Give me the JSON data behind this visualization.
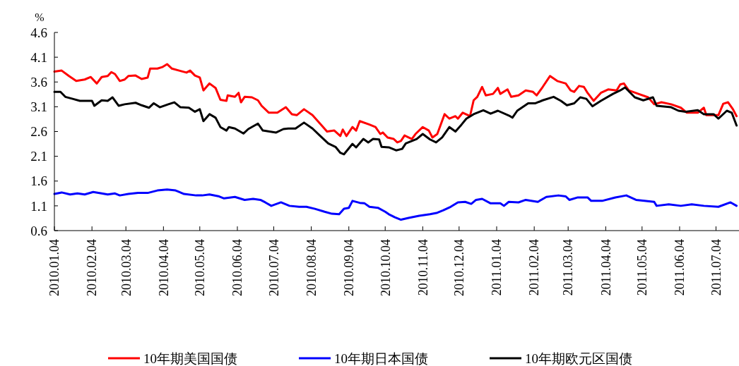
{
  "chart_data": {
    "type": "line",
    "ylabel": "%",
    "legend": "bottom",
    "line_style": "solid",
    "marker": "none",
    "xlim": [
      "2010-01-04",
      "2011-07-23"
    ],
    "ylim": [
      0.6,
      4.6
    ],
    "yticks": [
      {
        "value": 0.6,
        "label": "0.6"
      },
      {
        "value": 1.1,
        "label": "1.1"
      },
      {
        "value": 1.6,
        "label": "1.6"
      },
      {
        "value": 2.1,
        "label": "2.1"
      },
      {
        "value": 2.6,
        "label": "2.6"
      },
      {
        "value": 3.1,
        "label": "3.1"
      },
      {
        "value": 3.6,
        "label": "3.6"
      },
      {
        "value": 4.1,
        "label": "4.1"
      },
      {
        "value": 4.6,
        "label": "4.6"
      }
    ],
    "xticks": [
      {
        "value": "2010-01-04",
        "label": "2010.01.04"
      },
      {
        "value": "2010-02-04",
        "label": "2010.02.04"
      },
      {
        "value": "2010-03-04",
        "label": "2010.03.04"
      },
      {
        "value": "2010-04-04",
        "label": "2010.04.04"
      },
      {
        "value": "2010-05-04",
        "label": "2010.05.04"
      },
      {
        "value": "2010-06-04",
        "label": "2010.06.04"
      },
      {
        "value": "2010-07-04",
        "label": "2010.07.04"
      },
      {
        "value": "2010-08-04",
        "label": "2010.08.04"
      },
      {
        "value": "2010-09-04",
        "label": "2010.09.04"
      },
      {
        "value": "2010-10-04",
        "label": "2010.10.04"
      },
      {
        "value": "2010-11-04",
        "label": "2010.11.04"
      },
      {
        "value": "2010-12-04",
        "label": "2010.12.04"
      },
      {
        "value": "2011-01-04",
        "label": "2011.01.04"
      },
      {
        "value": "2011-02-04",
        "label": "2011.02.04"
      },
      {
        "value": "2011-03-04",
        "label": "2011.03.04"
      },
      {
        "value": "2011-04-04",
        "label": "2011.04.04"
      },
      {
        "value": "2011-05-04",
        "label": "2011.05.04"
      },
      {
        "value": "2011-06-04",
        "label": "2011.06.04"
      },
      {
        "value": "2011-07-04",
        "label": "2011.07.04"
      }
    ],
    "series": [
      {
        "name": "10年期美国国债",
        "color": "#ff0000",
        "x": [
          "2010-01-04",
          "2010-01-10",
          "2010-01-16",
          "2010-01-22",
          "2010-01-29",
          "2010-02-03",
          "2010-02-08",
          "2010-02-12",
          "2010-02-17",
          "2010-02-20",
          "2010-02-23",
          "2010-02-27",
          "2010-03-03",
          "2010-03-06",
          "2010-03-12",
          "2010-03-17",
          "2010-03-22",
          "2010-03-24",
          "2010-03-30",
          "2010-04-03",
          "2010-04-07",
          "2010-04-11",
          "2010-04-17",
          "2010-04-23",
          "2010-04-26",
          "2010-04-30",
          "2010-05-04",
          "2010-05-07",
          "2010-05-12",
          "2010-05-17",
          "2010-05-21",
          "2010-05-26",
          "2010-05-27",
          "2010-06-02",
          "2010-06-05",
          "2010-06-07",
          "2010-06-10",
          "2010-06-16",
          "2010-06-21",
          "2010-06-24",
          "2010-06-30",
          "2010-07-07",
          "2010-07-14",
          "2010-07-19",
          "2010-07-23",
          "2010-07-29",
          "2010-08-05",
          "2010-08-12",
          "2010-08-17",
          "2010-08-23",
          "2010-08-28",
          "2010-08-30",
          "2010-09-02",
          "2010-09-07",
          "2010-09-10",
          "2010-09-13",
          "2010-09-21",
          "2010-09-26",
          "2010-09-30",
          "2010-10-02",
          "2010-10-06",
          "2010-10-11",
          "2010-10-14",
          "2010-10-17",
          "2010-10-20",
          "2010-10-26",
          "2010-10-29",
          "2010-11-04",
          "2010-11-09",
          "2010-11-12",
          "2010-11-16",
          "2010-11-22",
          "2010-11-26",
          "2010-12-01",
          "2010-12-03",
          "2010-12-07",
          "2010-12-13",
          "2010-12-16",
          "2010-12-19",
          "2010-12-23",
          "2010-12-26",
          "2011-01-01",
          "2011-01-05",
          "2011-01-07",
          "2011-01-13",
          "2011-01-16",
          "2011-01-22",
          "2011-01-28",
          "2011-02-03",
          "2011-02-06",
          "2011-02-11",
          "2011-02-17",
          "2011-02-23",
          "2011-03-02",
          "2011-03-06",
          "2011-03-09",
          "2011-03-13",
          "2011-03-17",
          "2011-03-20",
          "2011-03-25",
          "2011-03-31",
          "2011-04-06",
          "2011-04-13",
          "2011-04-16",
          "2011-04-19",
          "2011-04-23",
          "2011-05-01",
          "2011-05-09",
          "2011-05-14",
          "2011-05-20",
          "2011-05-28",
          "2011-06-05",
          "2011-06-10",
          "2011-06-19",
          "2011-06-24",
          "2011-06-26",
          "2011-07-02",
          "2011-07-06",
          "2011-07-10",
          "2011-07-14",
          "2011-07-18",
          "2011-07-21"
        ],
        "values": [
          3.81,
          3.83,
          3.72,
          3.62,
          3.65,
          3.7,
          3.57,
          3.7,
          3.72,
          3.8,
          3.76,
          3.62,
          3.65,
          3.72,
          3.73,
          3.66,
          3.69,
          3.87,
          3.87,
          3.9,
          3.96,
          3.87,
          3.83,
          3.79,
          3.83,
          3.73,
          3.69,
          3.43,
          3.57,
          3.48,
          3.24,
          3.22,
          3.33,
          3.3,
          3.38,
          3.19,
          3.3,
          3.29,
          3.23,
          3.12,
          2.98,
          2.98,
          3.09,
          2.95,
          2.93,
          3.05,
          2.93,
          2.74,
          2.6,
          2.62,
          2.51,
          2.64,
          2.51,
          2.69,
          2.62,
          2.81,
          2.74,
          2.69,
          2.55,
          2.58,
          2.48,
          2.45,
          2.38,
          2.41,
          2.52,
          2.45,
          2.55,
          2.69,
          2.62,
          2.48,
          2.55,
          2.95,
          2.86,
          2.91,
          2.86,
          2.98,
          2.91,
          3.23,
          3.3,
          3.5,
          3.33,
          3.36,
          3.48,
          3.36,
          3.45,
          3.3,
          3.33,
          3.43,
          3.4,
          3.33,
          3.5,
          3.72,
          3.62,
          3.57,
          3.43,
          3.4,
          3.52,
          3.5,
          3.38,
          3.22,
          3.38,
          3.45,
          3.43,
          3.55,
          3.57,
          3.43,
          3.36,
          3.29,
          3.15,
          3.19,
          3.15,
          3.08,
          2.98,
          2.98,
          3.08,
          2.93,
          2.93,
          2.93,
          3.16,
          3.19,
          3.05,
          2.91
        ]
      },
      {
        "name": "10年期日本国债",
        "color": "#0000ff",
        "x": [
          "2010-01-04",
          "2010-01-10",
          "2010-01-17",
          "2010-01-23",
          "2010-01-29",
          "2010-02-05",
          "2010-02-12",
          "2010-02-17",
          "2010-02-23",
          "2010-02-27",
          "2010-03-06",
          "2010-03-14",
          "2010-03-22",
          "2010-03-30",
          "2010-04-07",
          "2010-04-14",
          "2010-04-21",
          "2010-05-01",
          "2010-05-06",
          "2010-05-12",
          "2010-05-20",
          "2010-05-24",
          "2010-06-02",
          "2010-06-10",
          "2010-06-17",
          "2010-06-23",
          "2010-06-27",
          "2010-07-02",
          "2010-07-10",
          "2010-07-17",
          "2010-07-25",
          "2010-07-31",
          "2010-08-07",
          "2010-08-15",
          "2010-08-21",
          "2010-08-27",
          "2010-08-31",
          "2010-09-04",
          "2010-09-07",
          "2010-09-13",
          "2010-09-17",
          "2010-09-21",
          "2010-09-28",
          "2010-10-04",
          "2010-10-07",
          "2010-10-12",
          "2010-10-17",
          "2010-10-24",
          "2010-11-01",
          "2010-11-10",
          "2010-11-16",
          "2010-11-21",
          "2010-11-27",
          "2010-12-03",
          "2010-12-09",
          "2010-12-14",
          "2010-12-18",
          "2010-12-23",
          "2010-12-30",
          "2011-01-07",
          "2011-01-10",
          "2011-01-14",
          "2011-01-22",
          "2011-01-28",
          "2011-02-07",
          "2011-02-14",
          "2011-02-24",
          "2011-03-02",
          "2011-03-05",
          "2011-03-12",
          "2011-03-20",
          "2011-03-23",
          "2011-04-01",
          "2011-04-12",
          "2011-04-21",
          "2011-04-29",
          "2011-05-06",
          "2011-05-14",
          "2011-05-16",
          "2011-05-26",
          "2011-06-05",
          "2011-06-14",
          "2011-06-24",
          "2011-07-06",
          "2011-07-16",
          "2011-07-21"
        ],
        "values": [
          1.34,
          1.37,
          1.33,
          1.35,
          1.33,
          1.38,
          1.35,
          1.33,
          1.35,
          1.31,
          1.34,
          1.36,
          1.36,
          1.41,
          1.43,
          1.41,
          1.34,
          1.31,
          1.31,
          1.33,
          1.29,
          1.25,
          1.28,
          1.22,
          1.24,
          1.22,
          1.17,
          1.1,
          1.17,
          1.1,
          1.08,
          1.08,
          1.04,
          0.98,
          0.94,
          0.93,
          1.04,
          1.06,
          1.2,
          1.16,
          1.15,
          1.08,
          1.06,
          0.98,
          0.93,
          0.87,
          0.82,
          0.86,
          0.9,
          0.93,
          0.96,
          1.01,
          1.08,
          1.17,
          1.18,
          1.14,
          1.22,
          1.24,
          1.15,
          1.15,
          1.1,
          1.18,
          1.17,
          1.22,
          1.18,
          1.28,
          1.31,
          1.29,
          1.22,
          1.27,
          1.27,
          1.2,
          1.2,
          1.27,
          1.31,
          1.22,
          1.2,
          1.18,
          1.1,
          1.13,
          1.1,
          1.13,
          1.1,
          1.08,
          1.17,
          1.1
        ]
      },
      {
        "name": "10年期欧元区国债",
        "color": "#000000",
        "x": [
          "2010-01-04",
          "2010-01-09",
          "2010-01-13",
          "2010-01-19",
          "2010-01-25",
          "2010-02-04",
          "2010-02-06",
          "2010-02-12",
          "2010-02-17",
          "2010-02-21",
          "2010-02-26",
          "2010-03-03",
          "2010-03-12",
          "2010-03-17",
          "2010-03-23",
          "2010-03-27",
          "2010-04-01",
          "2010-04-08",
          "2010-04-13",
          "2010-04-18",
          "2010-04-25",
          "2010-04-30",
          "2010-05-04",
          "2010-05-07",
          "2010-05-12",
          "2010-05-17",
          "2010-05-21",
          "2010-05-26",
          "2010-05-28",
          "2010-06-02",
          "2010-06-09",
          "2010-06-13",
          "2010-06-21",
          "2010-06-25",
          "2010-07-06",
          "2010-07-12",
          "2010-07-16",
          "2010-07-22",
          "2010-07-29",
          "2010-08-05",
          "2010-08-11",
          "2010-08-18",
          "2010-08-24",
          "2010-08-28",
          "2010-08-31",
          "2010-09-07",
          "2010-09-10",
          "2010-09-16",
          "2010-09-20",
          "2010-09-24",
          "2010-09-29",
          "2010-10-01",
          "2010-10-07",
          "2010-10-13",
          "2010-10-18",
          "2010-10-21",
          "2010-10-30",
          "2010-11-04",
          "2010-11-10",
          "2010-11-15",
          "2010-11-20",
          "2010-11-26",
          "2010-12-01",
          "2010-12-06",
          "2010-12-10",
          "2010-12-16",
          "2010-12-24",
          "2010-12-30",
          "2011-01-05",
          "2011-01-15",
          "2011-01-17",
          "2011-01-21",
          "2011-01-30",
          "2011-02-05",
          "2011-02-11",
          "2011-02-20",
          "2011-02-26",
          "2011-03-03",
          "2011-03-09",
          "2011-03-14",
          "2011-03-19",
          "2011-03-24",
          "2011-03-31",
          "2011-04-10",
          "2011-04-16",
          "2011-04-20",
          "2011-04-28",
          "2011-05-05",
          "2011-05-13",
          "2011-05-16",
          "2011-05-28",
          "2011-06-03",
          "2011-06-09",
          "2011-06-19",
          "2011-06-24",
          "2011-07-02",
          "2011-07-06",
          "2011-07-13",
          "2011-07-17",
          "2011-07-21"
        ],
        "values": [
          3.4,
          3.4,
          3.3,
          3.26,
          3.22,
          3.22,
          3.12,
          3.23,
          3.22,
          3.29,
          3.12,
          3.15,
          3.18,
          3.13,
          3.08,
          3.17,
          3.09,
          3.15,
          3.19,
          3.09,
          3.08,
          3.0,
          3.05,
          2.81,
          2.95,
          2.88,
          2.69,
          2.62,
          2.69,
          2.66,
          2.56,
          2.65,
          2.76,
          2.62,
          2.58,
          2.65,
          2.66,
          2.66,
          2.78,
          2.66,
          2.52,
          2.36,
          2.29,
          2.17,
          2.14,
          2.35,
          2.28,
          2.45,
          2.38,
          2.45,
          2.44,
          2.29,
          2.28,
          2.22,
          2.25,
          2.36,
          2.45,
          2.55,
          2.44,
          2.38,
          2.48,
          2.69,
          2.6,
          2.74,
          2.86,
          2.95,
          3.03,
          2.96,
          3.02,
          2.91,
          2.88,
          3.02,
          3.17,
          3.17,
          3.23,
          3.3,
          3.22,
          3.13,
          3.17,
          3.29,
          3.26,
          3.11,
          3.22,
          3.36,
          3.43,
          3.49,
          3.29,
          3.23,
          3.29,
          3.12,
          3.09,
          3.02,
          3.0,
          3.03,
          2.95,
          2.95,
          2.86,
          3.02,
          2.98,
          2.72
        ]
      }
    ]
  }
}
